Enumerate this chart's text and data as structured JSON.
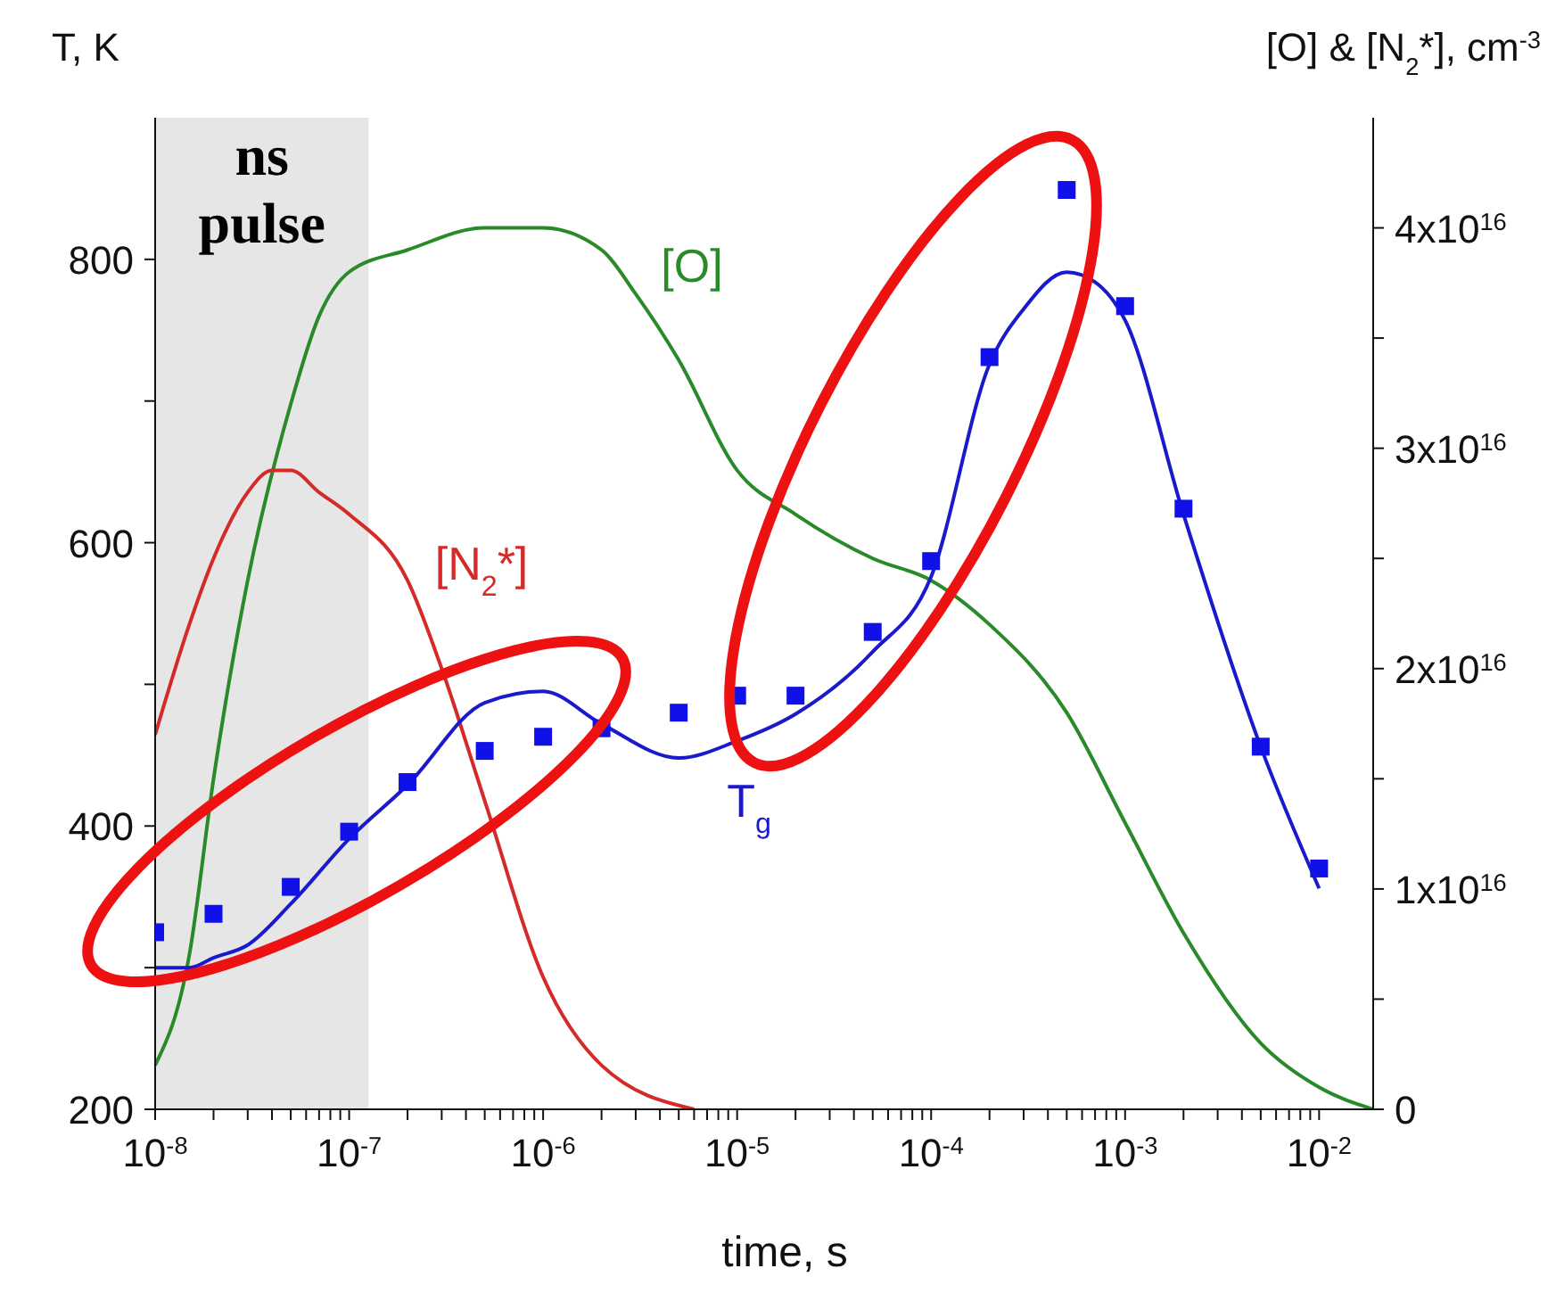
{
  "chart_data": {
    "type": "line",
    "xlabel": "time, s",
    "ylabel": "T, K",
    "y2label": "[O] & [N$_{2}$*], cm$^{-3}$",
    "log": "x",
    "grid": false,
    "legend": false,
    "marker": "none",
    "line_style": "solid",
    "xlim": [
      1e-08,
      0.019
    ],
    "xticks": [
      {
        "value": 1e-08,
        "label": "10$^{-8}$"
      },
      {
        "value": 2e-08,
        "label": null
      },
      {
        "value": 3e-08,
        "label": null
      },
      {
        "value": 4e-08,
        "label": null
      },
      {
        "value": 5e-08,
        "label": null
      },
      {
        "value": 6e-08,
        "label": null
      },
      {
        "value": 7e-08,
        "label": null
      },
      {
        "value": 8e-08,
        "label": null
      },
      {
        "value": 9e-08,
        "label": null
      },
      {
        "value": 1e-07,
        "label": "10$^{-7}$"
      },
      {
        "value": 2e-07,
        "label": null
      },
      {
        "value": 3e-07,
        "label": null
      },
      {
        "value": 4e-07,
        "label": null
      },
      {
        "value": 5e-07,
        "label": null
      },
      {
        "value": 6e-07,
        "label": null
      },
      {
        "value": 7e-07,
        "label": null
      },
      {
        "value": 8e-07,
        "label": null
      },
      {
        "value": 9e-07,
        "label": null
      },
      {
        "value": 1e-06,
        "label": "10$^{-6}$"
      },
      {
        "value": 2e-06,
        "label": null
      },
      {
        "value": 3e-06,
        "label": null
      },
      {
        "value": 4e-06,
        "label": null
      },
      {
        "value": 5e-06,
        "label": null
      },
      {
        "value": 6e-06,
        "label": null
      },
      {
        "value": 7e-06,
        "label": null
      },
      {
        "value": 8e-06,
        "label": null
      },
      {
        "value": 9e-06,
        "label": null
      },
      {
        "value": 1e-05,
        "label": "10$^{-5}$"
      },
      {
        "value": 2e-05,
        "label": null
      },
      {
        "value": 3e-05,
        "label": null
      },
      {
        "value": 4e-05,
        "label": null
      },
      {
        "value": 5e-05,
        "label": null
      },
      {
        "value": 6e-05,
        "label": null
      },
      {
        "value": 7e-05,
        "label": null
      },
      {
        "value": 8e-05,
        "label": null
      },
      {
        "value": 9e-05,
        "label": null
      },
      {
        "value": 0.0001,
        "label": "10$^{-4}$"
      },
      {
        "value": 0.0002,
        "label": null
      },
      {
        "value": 0.0003,
        "label": null
      },
      {
        "value": 0.0004,
        "label": null
      },
      {
        "value": 0.0005,
        "label": null
      },
      {
        "value": 0.0006,
        "label": null
      },
      {
        "value": 0.0007,
        "label": null
      },
      {
        "value": 0.0008,
        "label": null
      },
      {
        "value": 0.0009,
        "label": null
      },
      {
        "value": 0.001,
        "label": "10$^{-3}$"
      },
      {
        "value": 0.002,
        "label": null
      },
      {
        "value": 0.003,
        "label": null
      },
      {
        "value": 0.004,
        "label": null
      },
      {
        "value": 0.005,
        "label": null
      },
      {
        "value": 0.006,
        "label": null
      },
      {
        "value": 0.007,
        "label": null
      },
      {
        "value": 0.008,
        "label": null
      },
      {
        "value": 0.009,
        "label": null
      },
      {
        "value": 0.01,
        "label": "10$^{-2}$"
      }
    ],
    "ylim": [
      200,
      900
    ],
    "yticks": [
      200,
      {
        "value": 300,
        "label": null
      },
      400,
      {
        "value": 500,
        "label": null
      },
      600,
      {
        "value": 700,
        "label": null
      },
      800
    ],
    "y2lim": [
      0,
      4.5e+16
    ],
    "y2ticks": [
      0,
      {
        "value": 5000000000000000.0,
        "label": null
      },
      {
        "value": 1e+16,
        "label": "1x10$^{16}$"
      },
      {
        "value": 1.5e+16,
        "label": null
      },
      {
        "value": 2e+16,
        "label": "2x10$^{16}$"
      },
      {
        "value": 2.5e+16,
        "label": null
      },
      {
        "value": 3e+16,
        "label": "3x10$^{16}$"
      },
      {
        "value": 3.5e+16,
        "label": null
      },
      {
        "value": 4e+16,
        "label": "4x10$^{16}$"
      }
    ],
    "bands": [
      {
        "axis": "x",
        "from": 1e-08,
        "to": 1.26e-07,
        "label": "ns pulse",
        "color": "#e6e6e6"
      }
    ],
    "series": [
      {
        "name": "[O]",
        "type": "line",
        "axis": "y2",
        "color": "#2a8a2a",
        "x": [
          1e-08,
          1.5e-08,
          2e-08,
          3e-08,
          5e-08,
          7e-08,
          1e-07,
          2e-07,
          5e-07,
          1e-06,
          2e-06,
          3e-06,
          5e-06,
          1e-05,
          2e-05,
          5e-05,
          0.0001,
          0.0002,
          0.0005,
          0.001,
          0.002,
          0.005,
          0.01,
          0.019
        ],
        "values": [
          2000000000000000.0,
          7000000000000000.0,
          1.5e+16,
          2.4e+16,
          3.2e+16,
          3.6e+16,
          3.8e+16,
          3.9e+16,
          4e+16,
          4e+16,
          3.9e+16,
          3.7e+16,
          3.4e+16,
          2.9e+16,
          2.7e+16,
          2.5e+16,
          2.4e+16,
          2.2e+16,
          1.8e+16,
          1.3e+16,
          8000000000000000.0,
          3000000000000000.0,
          1000000000000000.0,
          0
        ]
      },
      {
        "name": "[N$_{2}$*]",
        "type": "line",
        "axis": "y2",
        "color": "#d42a2a",
        "x": [
          1e-08,
          1.5e-08,
          2e-08,
          3e-08,
          4e-08,
          5e-08,
          7e-08,
          1e-07,
          2e-07,
          3e-07,
          5e-07,
          1e-06,
          2e-06,
          6e-06
        ],
        "values": [
          1.7e+16,
          2.2e+16,
          2.5e+16,
          2.8e+16,
          2.9e+16,
          2.9e+16,
          2.8e+16,
          2.7e+16,
          2.4e+16,
          2e+16,
          1.4e+16,
          6000000000000000.0,
          2000000000000000.0,
          0
        ]
      },
      {
        "name": "T$_{g}$",
        "type": "line",
        "axis": "y",
        "color": "#1a1acc",
        "x": [
          1e-08,
          1.5e-08,
          2e-08,
          3e-08,
          5e-08,
          1e-07,
          2e-07,
          5e-07,
          1e-06,
          2e-06,
          5e-06,
          1e-05,
          2e-05,
          5e-05,
          0.0001,
          0.0002,
          0.0003,
          0.0005,
          0.0007,
          0.001,
          0.002,
          0.005,
          0.01
        ],
        "values": [
          300,
          300,
          307,
          316,
          345,
          391,
          429,
          487,
          495,
          472,
          448,
          460,
          479,
          523,
          576,
          726,
          765,
          791,
          784,
          757,
          620,
          456,
          356
        ]
      },
      {
        "type": "scatter",
        "axis": "y",
        "marker": "square",
        "color": "#1010e8",
        "x": [
          1e-08,
          2e-08,
          5e-08,
          1e-07,
          2e-07,
          5e-07,
          1e-06,
          2e-06,
          5e-06,
          1e-05,
          2e-05,
          5e-05,
          0.0001,
          0.0002,
          0.0005,
          0.001,
          0.002,
          0.005,
          0.01
        ],
        "values": [
          325,
          338,
          357,
          396,
          431,
          453,
          463,
          469,
          480,
          492,
          492,
          537,
          587,
          731,
          849,
          767,
          624,
          456,
          370
        ]
      }
    ]
  }
}
